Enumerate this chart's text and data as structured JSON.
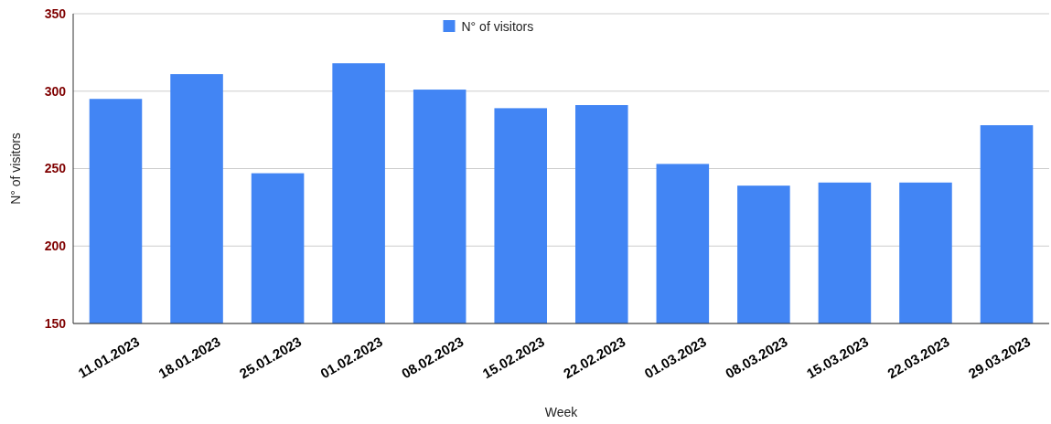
{
  "chart_data": {
    "type": "bar",
    "xlabel": "Week",
    "ylabel": "N° of visitors",
    "categories": [
      "11.01.2023",
      "18.01.2023",
      "25.01.2023",
      "01.02.2023",
      "08.02.2023",
      "15.02.2023",
      "22.02.2023",
      "01.03.2023",
      "08.03.2023",
      "15.03.2023",
      "22.03.2023",
      "29.03.2023"
    ],
    "series": [
      {
        "name": "N° of visitors",
        "color": "#4285f4",
        "values": [
          295,
          311,
          247,
          318,
          301,
          289,
          291,
          253,
          239,
          241,
          241,
          278
        ]
      }
    ],
    "ylim": [
      150,
      350
    ],
    "yticks": [
      150,
      200,
      250,
      300,
      350
    ],
    "grid": "y",
    "legend": "top"
  }
}
